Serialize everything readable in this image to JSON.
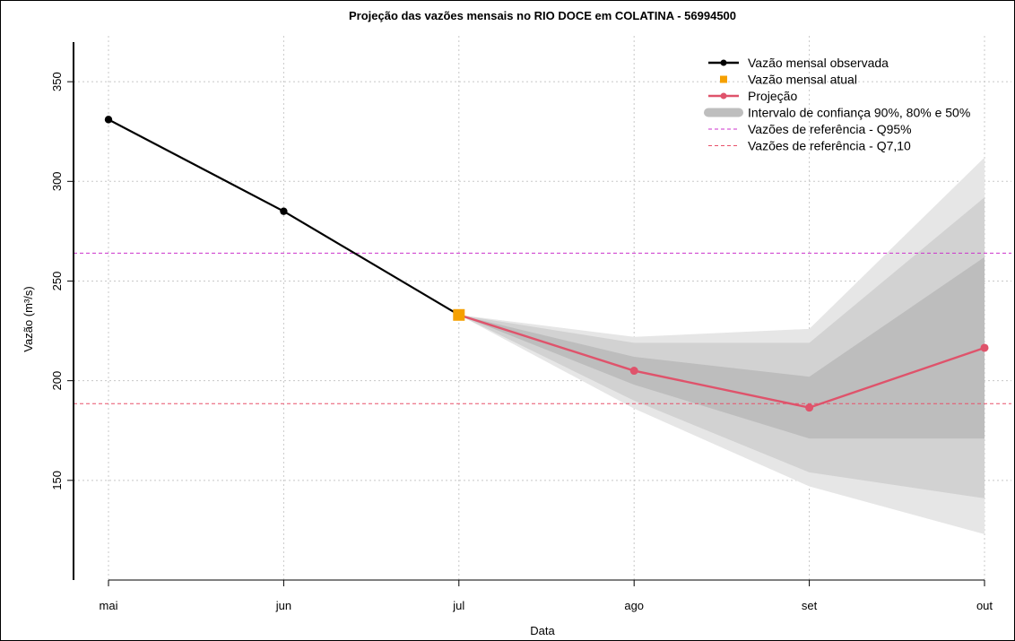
{
  "chart_data": {
    "type": "line",
    "title": "Projeção das vazões mensais no RIO DOCE em COLATINA - 56994500",
    "xlabel": "Data",
    "ylabel": "Vazão (m³/s)",
    "ylim": [
      100,
      373
    ],
    "y_ticks": [
      150,
      200,
      250,
      300,
      350
    ],
    "categories": [
      "mai",
      "jun",
      "jul",
      "ago",
      "set",
      "out"
    ],
    "grid": true,
    "legend_position": "top-right",
    "colors": {
      "observed": "#000000",
      "current": "#F5A000",
      "projection": "#DF536B",
      "band_90": "#E6E6E6",
      "band_80": "#D2D2D2",
      "band_50": "#BDBDBD",
      "q95": "#CC33CC",
      "q710": "#E8506A",
      "grid": "#C8C8C8"
    },
    "observed": {
      "x": [
        "mai",
        "jun",
        "jul"
      ],
      "values": [
        331,
        285,
        233
      ]
    },
    "current": {
      "x": "jul",
      "value": 233
    },
    "projection": {
      "x": [
        "jul",
        "ago",
        "set",
        "out"
      ],
      "values": [
        233,
        205,
        186.5,
        216.5
      ]
    },
    "bands": [
      {
        "level": "90%",
        "x": [
          "jul",
          "ago",
          "set",
          "out"
        ],
        "lower": [
          233,
          186,
          147,
          123
        ],
        "upper": [
          233,
          222,
          226,
          312
        ]
      },
      {
        "level": "80%",
        "x": [
          "jul",
          "ago",
          "set",
          "out"
        ],
        "lower": [
          233,
          190,
          154,
          141
        ],
        "upper": [
          233,
          219,
          219,
          292
        ]
      },
      {
        "level": "50%",
        "x": [
          "jul",
          "ago",
          "set",
          "out"
        ],
        "lower": [
          233,
          198,
          171,
          171
        ],
        "upper": [
          233,
          212,
          202,
          262
        ]
      }
    ],
    "reference_lines": [
      {
        "key": "q95",
        "value": 264
      },
      {
        "key": "q710",
        "value": 188.5
      }
    ],
    "legend": [
      {
        "key": "observed",
        "label": "Vazão mensal observada"
      },
      {
        "key": "current",
        "label": "Vazão mensal atual"
      },
      {
        "key": "projection",
        "label": "Projeção"
      },
      {
        "key": "bands",
        "label": "Intervalo de confiança 90%, 80% e 50%"
      },
      {
        "key": "q95",
        "label": "Vazões de referência - Q95%"
      },
      {
        "key": "q710",
        "label": "Vazões de referência - Q7,10"
      }
    ]
  }
}
